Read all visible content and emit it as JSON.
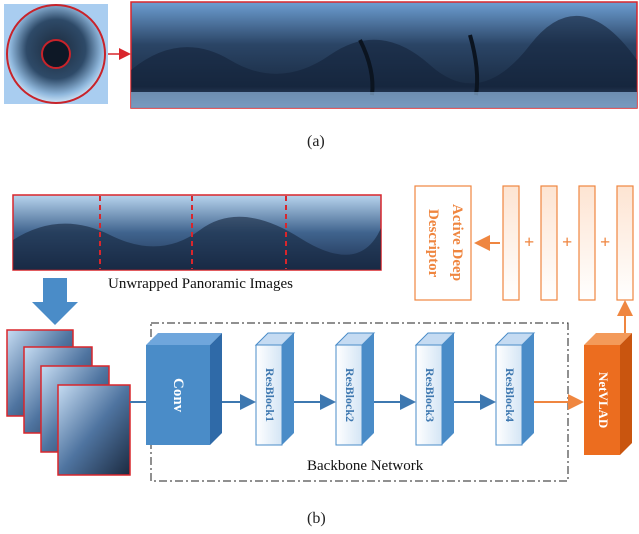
{
  "part_a": {
    "caption": "(a)"
  },
  "part_b": {
    "caption": "(b)",
    "panorama_label": "Unwrapped Panoramic Images",
    "backbone_label": "Backbone Network",
    "blocks": [
      "Conv",
      "ResBlock1",
      "ResBlock2",
      "ResBlock3",
      "ResBlock4"
    ],
    "netvlad_label": "NetVLAD",
    "descriptor_label_line1": "Active Deep",
    "descriptor_label_line2": "Descriptor",
    "plus_symbol": "+"
  },
  "colors": {
    "red_border": "#d9262c",
    "blue_block": "#4a8cc8",
    "blue_arrow": "#3e78b0",
    "orange": "#ef8640",
    "netvlad": "#ec6d1f"
  }
}
